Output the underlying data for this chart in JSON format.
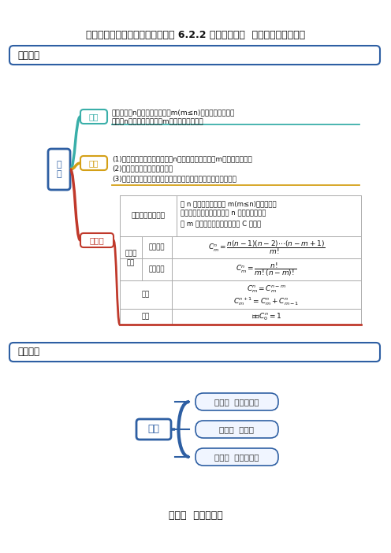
{
  "title": "人教版高中数学选择性必修第三册 6.2.2 组合及组合数  同步训练（原卷版）",
  "bg_color": "#ffffff",
  "section1_label": "思维导图",
  "section2_label": "常见考法",
  "section_box_color": "#2e5fa3",
  "mind_map": {
    "root_text": "组\n合",
    "node1_text": "定义",
    "node1_color": "#3aafa9",
    "node2_text": "特点",
    "node2_color": "#d4a017",
    "node3_text": "组合数",
    "node3_color": "#c0392b",
    "def_text": "一般地，从n个不同元素中取出m(m≤n)个元素合成一组，\n叫做从n个不同元素中取出m个元素的一个组合",
    "feature_text": "(1)组合的特点是只取不排：从n个不同的元素中进行m次不放回地取出\n(2)组合的特性：元素的无序性\n(3)相同的组合：只要两个组合中的元素完全相同就是相同的组合"
  },
  "table": {
    "col1_header": "组合数定义及表示",
    "col2_text": "从 n 个不同元素中取出 m(m≤n)个元素的所\n有不同组合的个数，叫做从 n 个不同元素中取\n出 m 个元素的组合数，用符号 C 表示。",
    "row_formula1_label": "乘积形式",
    "row_formula2_label": "阶乘形式",
    "row_prop_label": "性质",
    "row_note_label": "备注",
    "combined_label": "组合数\n公式"
  },
  "section2": {
    "root_text": "组合",
    "branches": [
      "考法一  组合的概念",
      "考法二  组合数",
      "考法三  组合的应用"
    ],
    "arc_color": "#2e5fa3"
  },
  "footer_text": "考法一  组合的概念"
}
